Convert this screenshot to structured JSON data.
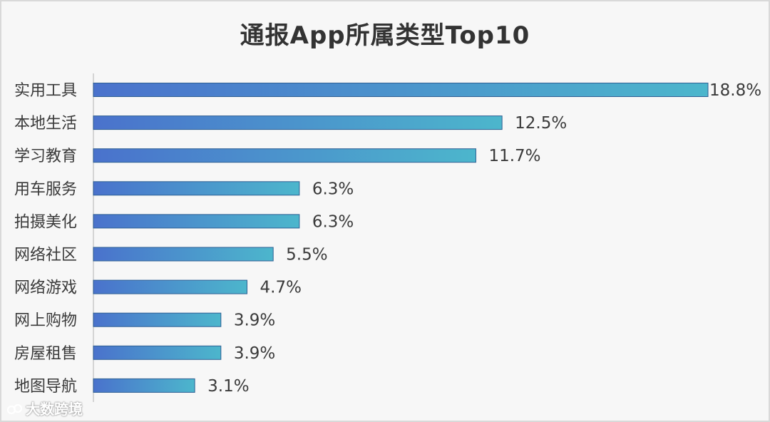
{
  "chart_data": {
    "type": "bar",
    "orientation": "horizontal",
    "title": "通报App所属类型Top10",
    "categories": [
      "实用工具",
      "本地生活",
      "学习教育",
      "用车服务",
      "拍摄美化",
      "网络社区",
      "网络游戏",
      "网上购物",
      "房屋租售",
      "地图导航"
    ],
    "values": [
      18.8,
      12.5,
      11.7,
      6.3,
      6.3,
      5.5,
      4.7,
      3.9,
      3.9,
      3.1
    ],
    "value_labels": [
      "18.8%",
      "12.5%",
      "11.7%",
      "6.3%",
      "6.3%",
      "5.5%",
      "4.7%",
      "3.9%",
      "3.9%",
      "3.1%"
    ],
    "xlim": [
      0,
      18.8
    ],
    "grid": false,
    "colors": {
      "bar_start": "#4a72cc",
      "bar_end": "#4cb6cc",
      "bar_border": "#2e5f93"
    }
  },
  "watermark": {
    "text": "大数跨境",
    "logo_icon": "brand-logo-icon"
  }
}
